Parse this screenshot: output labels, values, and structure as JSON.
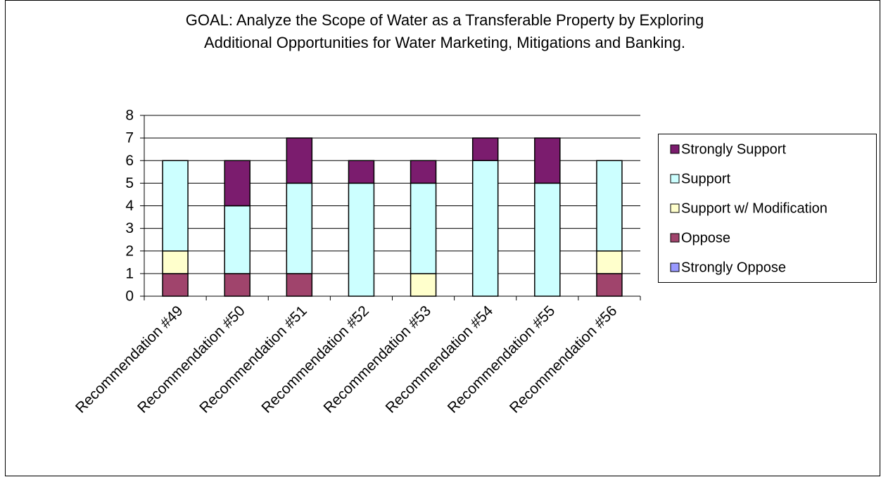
{
  "chart_data": {
    "type": "stacked_bar",
    "title": "GOAL: Analyze the Scope of Water as a Transferable Property by Exploring Additional Opportunities for Water Marketing, Mitigations and Banking.",
    "categories": [
      "Recommendation #49",
      "Recommendation #50",
      "Recommendation #51",
      "Recommendation #52",
      "Recommendation #53",
      "Recommendation #54",
      "Recommendation #55",
      "Recommendation #56"
    ],
    "series": [
      {
        "name": "Strongly Oppose",
        "color": "#9999ff",
        "values": [
          0,
          0,
          0,
          0,
          0,
          0,
          0,
          0
        ]
      },
      {
        "name": "Oppose",
        "color": "#a0446c",
        "values": [
          1,
          1,
          1,
          0,
          0,
          0,
          0,
          1
        ]
      },
      {
        "name": "Support w/ Modification",
        "color": "#ffffcc",
        "values": [
          1,
          0,
          0,
          0,
          1,
          0,
          0,
          1
        ]
      },
      {
        "name": "Support",
        "color": "#ccffff",
        "values": [
          4,
          3,
          4,
          5,
          4,
          6,
          5,
          4
        ]
      },
      {
        "name": "Strongly Support",
        "color": "#7b1c6e",
        "values": [
          0,
          2,
          2,
          1,
          1,
          1,
          2,
          0
        ]
      }
    ],
    "ylim": [
      0,
      8
    ],
    "yticks": [
      0,
      1,
      2,
      3,
      4,
      5,
      6,
      7,
      8
    ],
    "grid": true,
    "legend": "right"
  }
}
